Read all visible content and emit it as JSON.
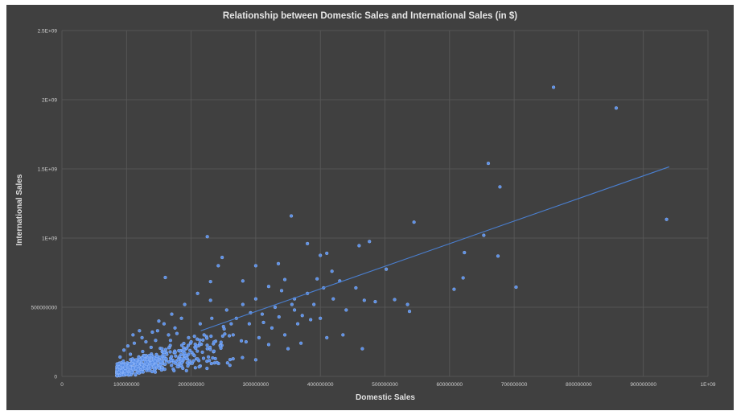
{
  "chart_data": {
    "type": "scatter",
    "title": "Relationship between Domestic Sales and International Sales (in $)",
    "xlabel": "Domestic Sales",
    "ylabel": "International Sales",
    "xlim": [
      0,
      1000000000
    ],
    "ylim": [
      0,
      2500000000
    ],
    "x_ticks": [
      0,
      100000000,
      200000000,
      300000000,
      400000000,
      500000000,
      600000000,
      700000000,
      800000000,
      900000000,
      1000000000
    ],
    "x_tick_labels": [
      "0",
      "100000000",
      "200000000",
      "300000000",
      "400000000",
      "500000000",
      "600000000",
      "700000000",
      "800000000",
      "900000000",
      "1E+09"
    ],
    "y_ticks": [
      0,
      500000000,
      1000000000,
      1500000000,
      2000000000,
      2500000000
    ],
    "y_tick_labels": [
      "0",
      "500000000",
      "1E+09",
      "1.5E+09",
      "2E+09",
      "2.5E+09"
    ],
    "grid": true,
    "legend": "none",
    "point_color": "#5b8fe6",
    "trendline": {
      "type": "linear",
      "x": [
        215000000,
        940000000
      ],
      "y": [
        330000000,
        1515000000
      ],
      "color": "#4a7fd0"
    },
    "points": [
      [
        761000000,
        2090000000
      ],
      [
        858000000,
        1940000000
      ],
      [
        660000000,
        1540000000
      ],
      [
        678000000,
        1370000000
      ],
      [
        936000000,
        1135000000
      ],
      [
        355000000,
        1160000000
      ],
      [
        545000000,
        1115000000
      ],
      [
        225000000,
        1010000000
      ],
      [
        653000000,
        1020000000
      ],
      [
        476000000,
        975000000
      ],
      [
        380000000,
        960000000
      ],
      [
        460000000,
        945000000
      ],
      [
        623000000,
        895000000
      ],
      [
        675000000,
        870000000
      ],
      [
        410000000,
        890000000
      ],
      [
        400000000,
        875000000
      ],
      [
        248000000,
        860000000
      ],
      [
        242000000,
        800000000
      ],
      [
        300000000,
        800000000
      ],
      [
        335000000,
        815000000
      ],
      [
        502000000,
        775000000
      ],
      [
        418000000,
        760000000
      ],
      [
        621000000,
        712000000
      ],
      [
        703000000,
        645000000
      ],
      [
        607000000,
        630000000
      ],
      [
        230000000,
        685000000
      ],
      [
        280000000,
        690000000
      ],
      [
        160000000,
        715000000
      ],
      [
        345000000,
        700000000
      ],
      [
        395000000,
        705000000
      ],
      [
        430000000,
        690000000
      ],
      [
        455000000,
        640000000
      ],
      [
        468000000,
        550000000
      ],
      [
        485000000,
        540000000
      ],
      [
        515000000,
        555000000
      ],
      [
        535000000,
        520000000
      ],
      [
        538000000,
        470000000
      ],
      [
        465000000,
        200000000
      ],
      [
        410000000,
        280000000
      ],
      [
        435000000,
        300000000
      ],
      [
        370000000,
        240000000
      ],
      [
        350000000,
        200000000
      ],
      [
        320000000,
        230000000
      ],
      [
        300000000,
        120000000
      ],
      [
        260000000,
        80000000
      ],
      [
        240000000,
        100000000
      ],
      [
        380000000,
        600000000
      ],
      [
        360000000,
        560000000
      ],
      [
        330000000,
        500000000
      ],
      [
        310000000,
        450000000
      ],
      [
        290000000,
        380000000
      ],
      [
        270000000,
        420000000
      ],
      [
        250000000,
        360000000
      ],
      [
        220000000,
        300000000
      ],
      [
        200000000,
        250000000
      ],
      [
        185000000,
        420000000
      ],
      [
        175000000,
        350000000
      ],
      [
        165000000,
        300000000
      ],
      [
        155000000,
        200000000
      ],
      [
        145000000,
        260000000
      ],
      [
        135000000,
        150000000
      ],
      [
        125000000,
        180000000
      ],
      [
        115000000,
        120000000
      ],
      [
        105000000,
        90000000
      ],
      [
        98000000,
        60000000
      ],
      [
        92000000,
        40000000
      ],
      [
        88000000,
        30000000
      ],
      [
        95000000,
        110000000
      ],
      [
        102000000,
        220000000
      ],
      [
        110000000,
        300000000
      ],
      [
        120000000,
        330000000
      ],
      [
        130000000,
        250000000
      ],
      [
        140000000,
        320000000
      ],
      [
        150000000,
        400000000
      ],
      [
        170000000,
        450000000
      ],
      [
        190000000,
        520000000
      ],
      [
        210000000,
        600000000
      ],
      [
        230000000,
        550000000
      ],
      [
        255000000,
        480000000
      ],
      [
        280000000,
        520000000
      ],
      [
        300000000,
        560000000
      ],
      [
        320000000,
        650000000
      ],
      [
        340000000,
        620000000
      ],
      [
        360000000,
        480000000
      ],
      [
        390000000,
        520000000
      ],
      [
        400000000,
        420000000
      ],
      [
        420000000,
        560000000
      ],
      [
        440000000,
        480000000
      ],
      [
        405000000,
        640000000
      ],
      [
        385000000,
        410000000
      ],
      [
        365000000,
        380000000
      ],
      [
        345000000,
        300000000
      ],
      [
        325000000,
        350000000
      ],
      [
        305000000,
        280000000
      ],
      [
        285000000,
        250000000
      ],
      [
        265000000,
        300000000
      ],
      [
        245000000,
        220000000
      ],
      [
        225000000,
        200000000
      ],
      [
        205000000,
        150000000
      ],
      [
        190000000,
        170000000
      ],
      [
        180000000,
        120000000
      ],
      [
        160000000,
        90000000
      ],
      [
        150000000,
        60000000
      ],
      [
        140000000,
        100000000
      ],
      [
        130000000,
        70000000
      ],
      [
        118000000,
        50000000
      ],
      [
        108000000,
        30000000
      ],
      [
        100000000,
        20000000
      ],
      [
        94000000,
        80000000
      ],
      [
        90000000,
        140000000
      ],
      [
        96000000,
        190000000
      ],
      [
        106000000,
        160000000
      ],
      [
        112000000,
        240000000
      ],
      [
        124000000,
        280000000
      ],
      [
        138000000,
        210000000
      ],
      [
        148000000,
        330000000
      ],
      [
        158000000,
        380000000
      ],
      [
        168000000,
        260000000
      ],
      [
        178000000,
        310000000
      ],
      [
        196000000,
        280000000
      ],
      [
        214000000,
        380000000
      ],
      [
        232000000,
        420000000
      ],
      [
        262000000,
        380000000
      ],
      [
        292000000,
        460000000
      ],
      [
        312000000,
        390000000
      ],
      [
        336000000,
        430000000
      ],
      [
        356000000,
        520000000
      ],
      [
        372000000,
        440000000
      ]
    ]
  }
}
